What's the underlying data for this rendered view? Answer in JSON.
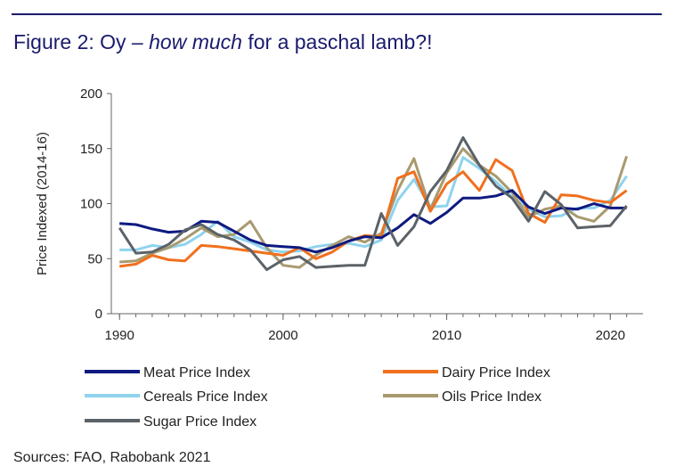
{
  "title": {
    "prefix": "Figure 2: Oy – ",
    "emphasis": "how much",
    "suffix": " for a paschal lamb?!"
  },
  "source": "Sources: FAO, Rabobank 2021",
  "chart_data": {
    "type": "line",
    "title": "Figure 2: Oy – how much for a paschal lamb?!",
    "xlabel": "",
    "ylabel": "Price Indexed (2014-16)",
    "xlim": [
      1989.5,
      2022
    ],
    "ylim": [
      0,
      200
    ],
    "xticks": [
      1990,
      2000,
      2010,
      2020
    ],
    "yticks": [
      0,
      50,
      100,
      150,
      200
    ],
    "grid": false,
    "legend_position": "bottom",
    "x": [
      1990,
      1991,
      1992,
      1993,
      1994,
      1995,
      1996,
      1997,
      1998,
      1999,
      2000,
      2001,
      2002,
      2003,
      2004,
      2005,
      2006,
      2007,
      2008,
      2009,
      2010,
      2011,
      2012,
      2013,
      2014,
      2015,
      2016,
      2017,
      2018,
      2019,
      2020,
      2021
    ],
    "series": [
      {
        "name": "Meat Price Index",
        "color": "#0e1a80",
        "values": [
          82,
          81,
          77,
          74,
          75,
          84,
          83,
          75,
          67,
          62,
          61,
          60,
          56,
          60,
          66,
          70,
          69,
          78,
          90,
          82,
          92,
          105,
          105,
          107,
          112,
          97,
          91,
          96,
          95,
          100,
          96,
          96
        ]
      },
      {
        "name": "Dairy Price Index",
        "color": "#f0701e",
        "values": [
          43,
          45,
          53,
          49,
          48,
          62,
          61,
          59,
          57,
          55,
          53,
          60,
          50,
          56,
          66,
          71,
          70,
          123,
          129,
          93,
          118,
          129,
          112,
          140,
          130,
          91,
          83,
          108,
          107,
          103,
          101,
          112
        ]
      },
      {
        "name": "Cereals Price Index",
        "color": "#8fd3ee",
        "values": [
          58,
          58,
          62,
          60,
          63,
          72,
          84,
          70,
          65,
          58,
          56,
          57,
          61,
          63,
          64,
          61,
          67,
          103,
          122,
          97,
          98,
          142,
          132,
          120,
          106,
          95,
          88,
          89,
          96,
          96,
          103,
          125
        ]
      },
      {
        "name": "Oils Price Index",
        "color": "#a89a70",
        "values": [
          47,
          48,
          55,
          60,
          68,
          78,
          70,
          72,
          84,
          60,
          44,
          42,
          53,
          62,
          70,
          65,
          73,
          112,
          141,
          95,
          128,
          150,
          135,
          125,
          110,
          88,
          95,
          98,
          88,
          84,
          98,
          143
        ]
      },
      {
        "name": "Sugar Price Index",
        "color": "#5b6268",
        "values": [
          78,
          55,
          56,
          63,
          76,
          81,
          72,
          67,
          58,
          40,
          49,
          52,
          42,
          43,
          44,
          44,
          91,
          62,
          79,
          111,
          130,
          160,
          135,
          116,
          105,
          84,
          111,
          99,
          78,
          79,
          80,
          98
        ]
      }
    ]
  }
}
